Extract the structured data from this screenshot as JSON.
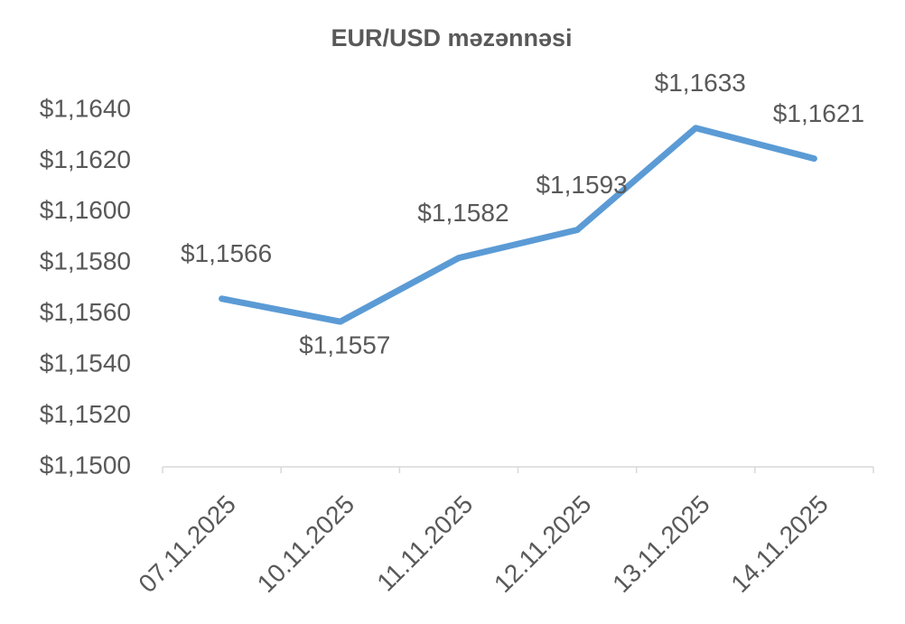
{
  "chart_data": {
    "type": "line",
    "title": "EUR/USD məzənnəsi",
    "categories": [
      "07.11.2025",
      "10.11.2025",
      "11.11.2025",
      "12.11.2025",
      "13.11.2025",
      "14.11.2025"
    ],
    "values": [
      1.1566,
      1.1557,
      1.1582,
      1.1593,
      1.1633,
      1.1621
    ],
    "value_labels": [
      "$1,1566",
      "$1,1557",
      "$1,1582",
      "$1,1593",
      "$1,1633",
      "$1,1621"
    ],
    "color": "#5b9bd5",
    "ylim": [
      1.15,
      1.164
    ],
    "yticks": [
      {
        "value": 1.15,
        "label": "$1,1500"
      },
      {
        "value": 1.152,
        "label": "$1,1520"
      },
      {
        "value": 1.154,
        "label": "$1,1540"
      },
      {
        "value": 1.156,
        "label": "$1,1560"
      },
      {
        "value": 1.158,
        "label": "$1,1580"
      },
      {
        "value": 1.16,
        "label": "$1,1600"
      },
      {
        "value": 1.162,
        "label": "$1,1620"
      },
      {
        "value": 1.164,
        "label": "$1,1640"
      }
    ],
    "grid": false
  }
}
